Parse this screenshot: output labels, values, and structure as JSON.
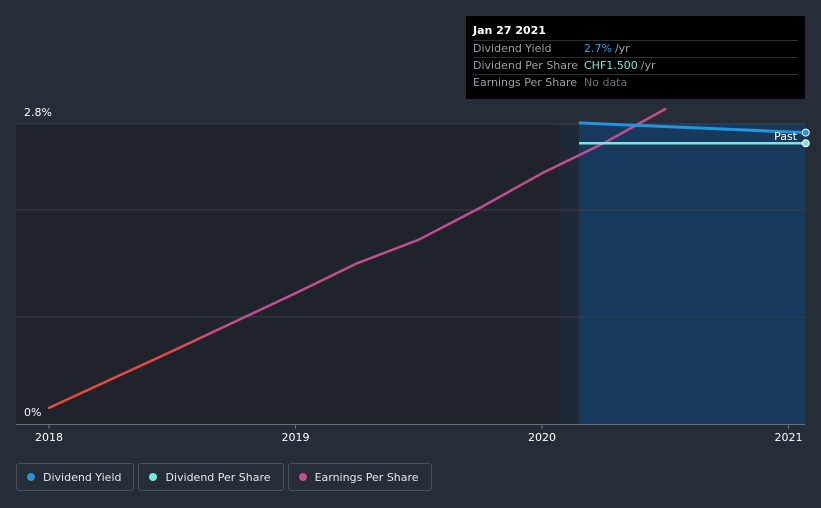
{
  "chart_data": {
    "type": "line",
    "x_ticks": [
      "2018",
      "2019",
      "2020",
      "2021"
    ],
    "y_ticks": [
      "0%",
      "2.8%"
    ],
    "ylim": [
      0,
      2.8
    ],
    "past_label": "Past",
    "series": [
      {
        "name": "Dividend Yield",
        "color": "#2394df",
        "points": [
          [
            2020.15,
            2.81
          ],
          [
            2021.07,
            2.72
          ]
        ]
      },
      {
        "name": "Dividend Per Share",
        "color": "#74ebe1",
        "points": [
          [
            2020.15,
            2.62
          ],
          [
            2021.07,
            2.62
          ]
        ]
      },
      {
        "name": "Earnings Per Share",
        "color": "#c44d8e",
        "start_color": "#e84a3c",
        "points": [
          [
            2018.0,
            0.15
          ],
          [
            2018.5,
            0.68
          ],
          [
            2019.0,
            1.22
          ],
          [
            2019.25,
            1.5
          ],
          [
            2019.5,
            1.72
          ],
          [
            2019.75,
            2.02
          ],
          [
            2020.0,
            2.34
          ],
          [
            2020.25,
            2.62
          ],
          [
            2020.5,
            2.94
          ]
        ]
      }
    ]
  },
  "tooltip": {
    "date": "Jan 27 2021",
    "rows": [
      {
        "label": "Dividend Yield",
        "value": "2.7%",
        "unit": "/yr",
        "color": "#3aa0f0"
      },
      {
        "label": "Dividend Per Share",
        "value": "CHF1.500",
        "unit": "/yr",
        "color": "#74ebe1"
      },
      {
        "label": "Earnings Per Share",
        "value": "No data",
        "unit": "",
        "color": "#6b7079"
      }
    ]
  },
  "legend": [
    {
      "label": "Dividend Yield",
      "color": "#2394df"
    },
    {
      "label": "Dividend Per Share",
      "color": "#74ebe1"
    },
    {
      "label": "Earnings Per Share",
      "color": "#c44d8e"
    }
  ]
}
